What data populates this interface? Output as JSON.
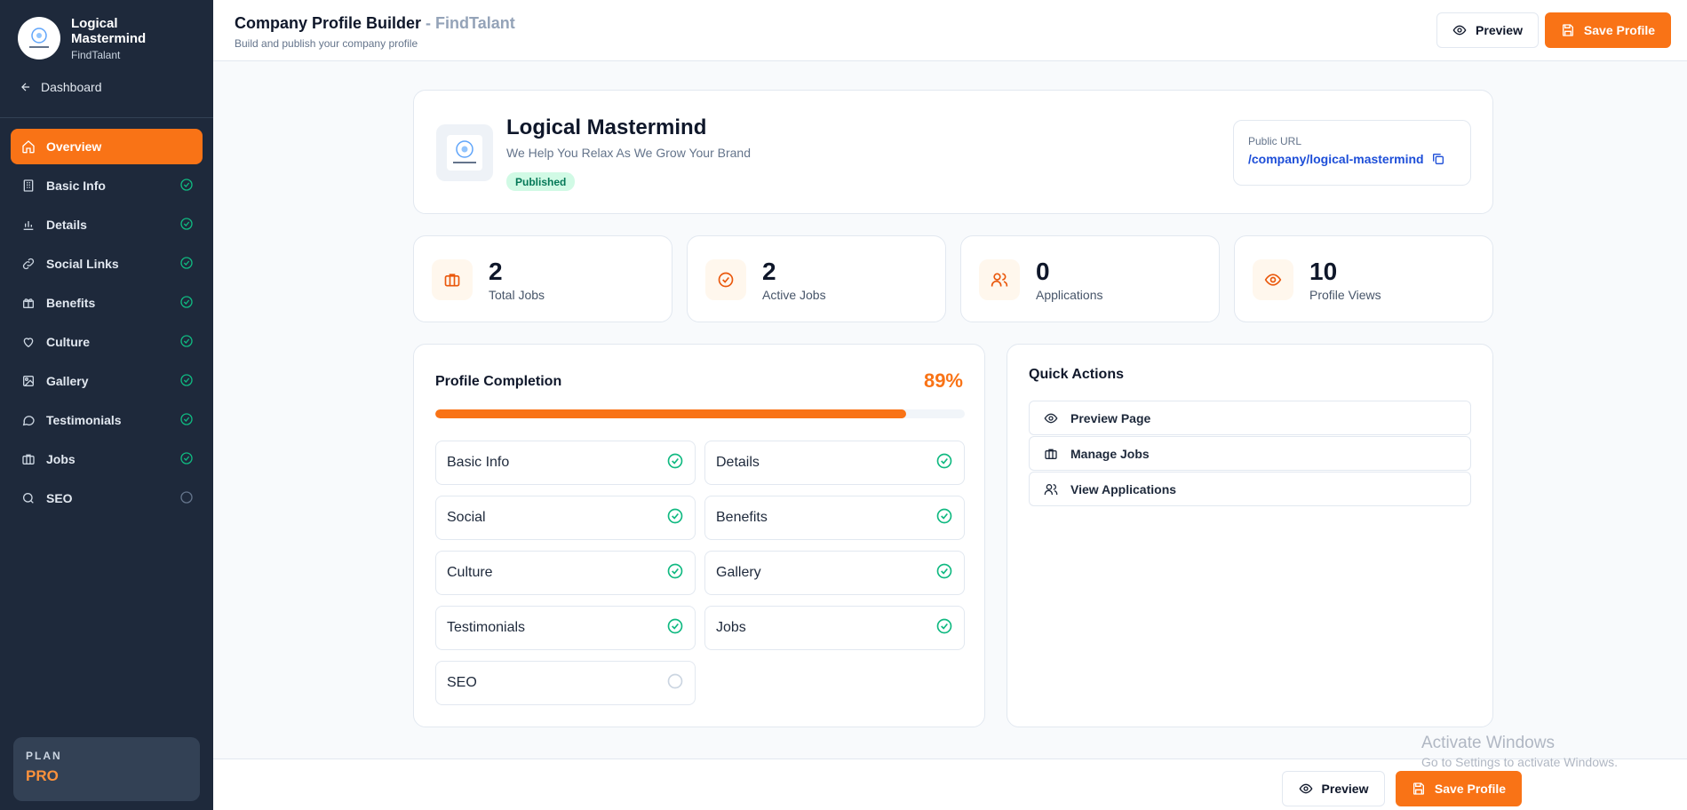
{
  "sidebar": {
    "brand_name": "Logical Mastermind",
    "brand_sub": "FindTalant",
    "back_label": "Dashboard",
    "items": [
      {
        "label": "Overview",
        "active": true
      },
      {
        "label": "Basic Info",
        "status": "complete"
      },
      {
        "label": "Details",
        "status": "complete"
      },
      {
        "label": "Social Links",
        "status": "complete"
      },
      {
        "label": "Benefits",
        "status": "complete"
      },
      {
        "label": "Culture",
        "status": "complete"
      },
      {
        "label": "Gallery",
        "status": "complete"
      },
      {
        "label": "Testimonials",
        "status": "complete"
      },
      {
        "label": "Jobs",
        "status": "complete"
      },
      {
        "label": "SEO",
        "status": "incomplete"
      }
    ],
    "plan_label": "PLAN",
    "plan_value": "PRO"
  },
  "header": {
    "title": "Company Profile Builder",
    "separator": " - ",
    "brand": "FindTalant",
    "subtitle": "Build and publish your company profile",
    "preview_label": "Preview",
    "save_label": "Save Profile"
  },
  "profile": {
    "name": "Logical Mastermind",
    "tagline": "We Help You Relax As We Grow Your Brand",
    "status": "Published",
    "url_label": "Public URL",
    "url_value": "/company/logical-mastermind"
  },
  "stats": [
    {
      "value": "2",
      "label": "Total Jobs",
      "icon": "briefcase-icon"
    },
    {
      "value": "2",
      "label": "Active Jobs",
      "icon": "check-circle-icon"
    },
    {
      "value": "0",
      "label": "Applications",
      "icon": "users-icon"
    },
    {
      "value": "10",
      "label": "Profile Views",
      "icon": "eye-icon"
    }
  ],
  "completion": {
    "title": "Profile Completion",
    "percent_label": "89%",
    "percent": 89,
    "items": [
      {
        "label": "Basic Info",
        "done": true
      },
      {
        "label": "Details",
        "done": true
      },
      {
        "label": "Social",
        "done": true
      },
      {
        "label": "Benefits",
        "done": true
      },
      {
        "label": "Culture",
        "done": true
      },
      {
        "label": "Gallery",
        "done": true
      },
      {
        "label": "Testimonials",
        "done": true
      },
      {
        "label": "Jobs",
        "done": true
      },
      {
        "label": "SEO",
        "done": false
      }
    ]
  },
  "quick_actions": {
    "title": "Quick Actions",
    "items": [
      {
        "label": "Preview Page",
        "icon": "eye-icon"
      },
      {
        "label": "Manage Jobs",
        "icon": "briefcase-icon"
      },
      {
        "label": "View Applications",
        "icon": "users-icon"
      }
    ]
  },
  "footer": {
    "preview_label": "Preview",
    "save_label": "Save Profile"
  },
  "watermark": {
    "line1": "Activate Windows",
    "line2": "Go to Settings to activate Windows."
  },
  "colors": {
    "accent": "#f97316",
    "sidebar_bg": "#1e293b",
    "success": "#10b981",
    "link": "#1d4ed8"
  }
}
